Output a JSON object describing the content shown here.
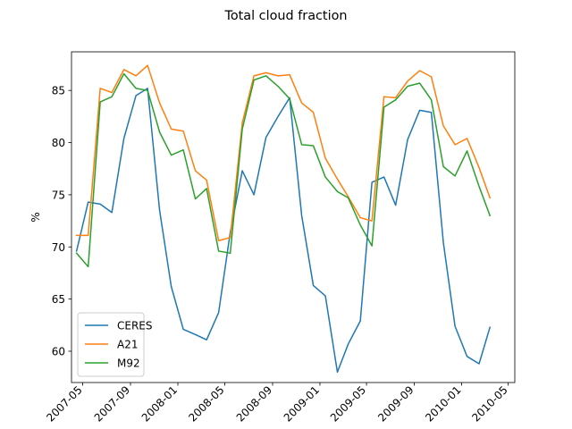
{
  "chart_data": {
    "type": "line",
    "title": "Total cloud fraction",
    "xlabel": "",
    "ylabel": "%",
    "ylim": [
      57,
      88.7
    ],
    "xlim": [
      "2007-04-02",
      "2010-05-18"
    ],
    "yticks": [
      60,
      65,
      70,
      75,
      80,
      85
    ],
    "xticks": [
      "2007-05",
      "2007-09",
      "2008-01",
      "2008-05",
      "2008-09",
      "2009-01",
      "2009-05",
      "2009-09",
      "2010-01",
      "2010-05"
    ],
    "grid": false,
    "legend_position": "lower-left",
    "x": [
      "2007-04-15",
      "2007-05-15",
      "2007-06-15",
      "2007-07-15",
      "2007-08-15",
      "2007-09-15",
      "2007-10-15",
      "2007-11-15",
      "2007-12-15",
      "2008-01-15",
      "2008-02-15",
      "2008-03-15",
      "2008-04-15",
      "2008-05-15",
      "2008-06-15",
      "2008-07-15",
      "2008-08-15",
      "2008-09-15",
      "2008-10-15",
      "2008-11-15",
      "2008-12-15",
      "2009-01-15",
      "2009-02-15",
      "2009-03-15",
      "2009-04-15",
      "2009-05-15",
      "2009-06-15",
      "2009-07-15",
      "2009-08-15",
      "2009-09-15",
      "2009-10-15",
      "2009-11-15",
      "2009-12-15",
      "2010-01-15",
      "2010-02-15",
      "2010-03-15",
      "2010-04-15"
    ],
    "series": [
      {
        "name": "CERES",
        "color": "#1f77b4",
        "values": [
          69.6,
          74.3,
          74.1,
          73.3,
          80.4,
          84.5,
          85.2,
          73.5,
          66.2,
          62.1,
          61.6,
          61.1,
          63.7,
          71.4,
          77.3,
          75.0,
          80.5,
          82.5,
          84.3,
          73.0,
          66.3,
          65.3,
          58.0,
          60.7,
          62.9,
          76.2,
          76.7,
          74.0,
          80.3,
          83.1,
          82.9,
          70.4,
          62.4,
          59.5,
          58.8,
          62.3,
          null
        ]
      },
      {
        "name": "A21",
        "color": "#ff7f0e",
        "values": [
          71.1,
          71.1,
          85.2,
          84.8,
          87.0,
          86.4,
          87.4,
          83.8,
          81.3,
          81.1,
          77.3,
          76.4,
          70.6,
          70.9,
          81.9,
          86.4,
          86.7,
          86.4,
          86.5,
          83.8,
          82.9,
          78.5,
          76.5,
          74.8,
          72.8,
          72.5,
          84.4,
          84.3,
          85.9,
          86.9,
          86.3,
          81.6,
          79.8,
          80.4,
          77.6,
          74.7,
          null
        ]
      },
      {
        "name": "M92",
        "color": "#2ca02c",
        "values": [
          69.4,
          68.1,
          83.9,
          84.4,
          86.6,
          85.2,
          85.0,
          81.0,
          78.8,
          79.3,
          74.6,
          75.6,
          69.6,
          69.4,
          81.3,
          86.0,
          86.4,
          85.4,
          84.2,
          79.8,
          79.7,
          76.7,
          75.3,
          74.7,
          72.1,
          70.1,
          83.4,
          84.1,
          85.4,
          85.7,
          84.1,
          77.7,
          76.8,
          79.2,
          75.8,
          73.0,
          null
        ]
      }
    ]
  }
}
